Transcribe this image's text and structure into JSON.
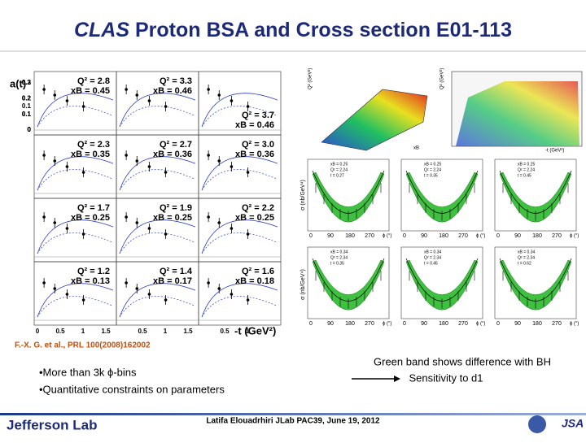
{
  "title": {
    "prefix": "CLAS",
    "main": "Proton BSA and Cross section",
    "suffix": "E01-113"
  },
  "left_figure": {
    "y_label": "a(t)",
    "x_label": "-t (GeV²)",
    "row_ticks": [
      [
        "0.2",
        "0.1",
        "0"
      ],
      [
        "0.3",
        "0.2",
        "0.1",
        "0"
      ],
      [
        "0.3",
        "0.2",
        "0.1",
        "0"
      ],
      [
        "0.3",
        "0.2",
        "0.1",
        "0"
      ]
    ],
    "x_ticks": [
      [
        "0",
        "0.5",
        "1",
        "1.5"
      ],
      [
        "0.5",
        "1",
        "1.5"
      ],
      [
        "0.5",
        "1"
      ]
    ],
    "panels": [
      {
        "q2": "Q² = 2.8",
        "xb": "xB = 0.45"
      },
      {
        "q2": "Q² = 3.3",
        "xb": "xB = 0.46"
      },
      {
        "q2": "Q² = 3.7",
        "xb": "xB = 0.46"
      },
      {
        "q2": "Q² = 2.3",
        "xb": "xB = 0.35"
      },
      {
        "q2": "Q² = 2.7",
        "xb": "xB = 0.36"
      },
      {
        "q2": "Q² = 3.0",
        "xb": "xB = 0.36"
      },
      {
        "q2": "Q² = 1.7",
        "xb": "xB = 0.25"
      },
      {
        "q2": "Q² = 1.9",
        "xb": "xB = 0.25"
      },
      {
        "q2": "Q² = 2.2",
        "xb": "xB = 0.25"
      },
      {
        "q2": "Q² = 1.2",
        "xb": "xB = 0.13"
      },
      {
        "q2": "Q² = 1.4",
        "xb": "xB = 0.17"
      },
      {
        "q2": "Q² = 1.6",
        "xb": "xB = 0.18"
      }
    ]
  },
  "right_figure": {
    "kin_x_labels": [
      "xB",
      "-t (GeV²)"
    ],
    "kin_y_labels": [
      "Q² (GeV²)",
      "Q² (GeV²)"
    ],
    "y_label": "σ (nb/GeV⁴)",
    "phi_ticks": [
      "0",
      "90",
      "180",
      "270"
    ],
    "phi_label": "ϕ (°)",
    "panels": [
      [
        "xB = 0.25",
        "Q² = 2.24",
        "t = 0.27"
      ],
      [
        "xB = 0.25",
        "Q² = 2.24",
        "t = 0.35"
      ],
      [
        "xB = 0.25",
        "Q² = 2.24",
        "t = 0.45"
      ],
      [
        "xB = 0.34",
        "Q² = 2.34",
        "t = 0.35"
      ],
      [
        "xB = 0.34",
        "Q² = 2.34",
        "t = 0.45"
      ],
      [
        "xB = 0.34",
        "Q² = 2.34",
        "t = 0.62"
      ]
    ]
  },
  "citation": "F.-X. G. et al., PRL 100(2008)162002",
  "bullets": [
    "•More than 3k ϕ-bins",
    "•Quantitative constraints on parameters"
  ],
  "note": [
    "Green band shows difference with BH",
    "Sensitivity to d1"
  ],
  "footer": {
    "author": "Latifa Elouadrhiri JLab PAC39, June 19, 2012",
    "logo": "Jefferson Lab",
    "jsa": "JSA"
  }
}
